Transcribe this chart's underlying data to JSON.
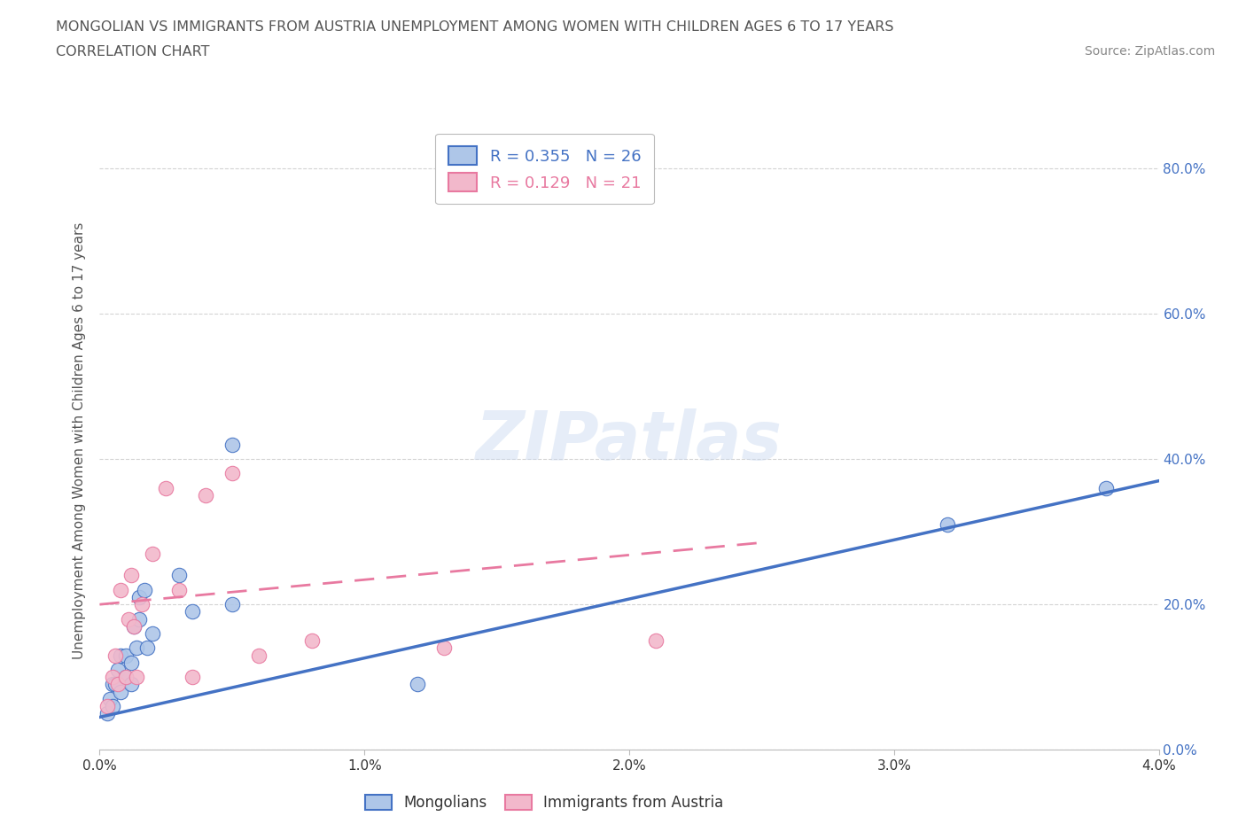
{
  "title_line1": "MONGOLIAN VS IMMIGRANTS FROM AUSTRIA UNEMPLOYMENT AMONG WOMEN WITH CHILDREN AGES 6 TO 17 YEARS",
  "title_line2": "CORRELATION CHART",
  "source_text": "Source: ZipAtlas.com",
  "ylabel": "Unemployment Among Women with Children Ages 6 to 17 years",
  "xlim": [
    0.0,
    0.04
  ],
  "ylim": [
    0.0,
    0.85
  ],
  "xticks": [
    0.0,
    0.01,
    0.02,
    0.03,
    0.04
  ],
  "xtick_labels": [
    "0.0%",
    "1.0%",
    "2.0%",
    "3.0%",
    "4.0%"
  ],
  "ytick_labels_right": [
    "0.0%",
    "20.0%",
    "40.0%",
    "60.0%",
    "80.0%"
  ],
  "yticks": [
    0.0,
    0.2,
    0.4,
    0.6,
    0.8
  ],
  "mongolian_color": "#aec6e8",
  "austria_color": "#f2b8cb",
  "mongolian_line_color": "#4472c4",
  "austria_line_color": "#e879a0",
  "R_mongolian": 0.355,
  "N_mongolian": 26,
  "R_austria": 0.129,
  "N_austria": 21,
  "mongolian_x": [
    0.0003,
    0.0004,
    0.0005,
    0.0005,
    0.0006,
    0.0007,
    0.0008,
    0.0008,
    0.001,
    0.001,
    0.0012,
    0.0012,
    0.0013,
    0.0014,
    0.0015,
    0.0015,
    0.0017,
    0.0018,
    0.002,
    0.003,
    0.0035,
    0.005,
    0.005,
    0.012,
    0.032,
    0.038
  ],
  "mongolian_y": [
    0.05,
    0.07,
    0.09,
    0.06,
    0.09,
    0.11,
    0.13,
    0.08,
    0.1,
    0.13,
    0.09,
    0.12,
    0.17,
    0.14,
    0.18,
    0.21,
    0.22,
    0.14,
    0.16,
    0.24,
    0.19,
    0.2,
    0.42,
    0.09,
    0.31,
    0.36
  ],
  "austria_x": [
    0.0003,
    0.0005,
    0.0006,
    0.0007,
    0.0008,
    0.001,
    0.0011,
    0.0012,
    0.0013,
    0.0014,
    0.0016,
    0.002,
    0.0025,
    0.003,
    0.0035,
    0.004,
    0.005,
    0.006,
    0.008,
    0.013,
    0.021
  ],
  "austria_y": [
    0.06,
    0.1,
    0.13,
    0.09,
    0.22,
    0.1,
    0.18,
    0.24,
    0.17,
    0.1,
    0.2,
    0.27,
    0.36,
    0.22,
    0.1,
    0.35,
    0.38,
    0.13,
    0.15,
    0.14,
    0.15
  ],
  "watermark": "ZIPatlas",
  "background_color": "#ffffff",
  "grid_color": "#c8c8c8",
  "blue_line_x0": 0.0,
  "blue_line_y0": 0.045,
  "blue_line_x1": 0.04,
  "blue_line_y1": 0.37,
  "pink_line_x0": 0.0,
  "pink_line_y0": 0.2,
  "pink_line_x1": 0.025,
  "pink_line_y1": 0.285
}
